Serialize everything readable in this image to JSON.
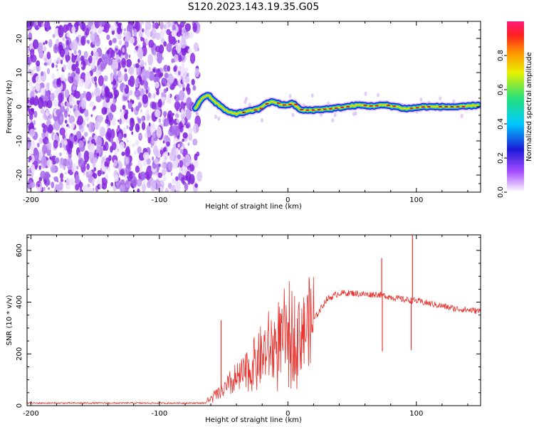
{
  "title": "S120.2023.143.19.35.G05",
  "colors": {
    "snr_line": "#e8332e",
    "scatter": "#8a2be2",
    "ridge_hot": "#e5192a",
    "ridge_warm": "#ffd000",
    "ridge_mid": "#2ee05a",
    "ridge_cool": "#1b1bd6"
  },
  "chart_data": [
    {
      "type": "heatmap",
      "xlabel": "Height of straight line (km)",
      "ylabel": "Frequency (Hz)",
      "xlim": [
        -203,
        150
      ],
      "ylim": [
        -25,
        25
      ],
      "xticks": [
        -200,
        -100,
        0,
        100
      ],
      "yticks": [
        -20,
        -10,
        0,
        10,
        20
      ],
      "noise_region_x": [
        -203,
        -72
      ],
      "ridge": {
        "x": [
          -72,
          -67,
          -62,
          -57,
          -52,
          -47,
          -40,
          -33,
          -27,
          -22,
          -17,
          -11,
          -5,
          0,
          4,
          10,
          18,
          25,
          35,
          45,
          55,
          65,
          75,
          85,
          90,
          95,
          105,
          120,
          135,
          148
        ],
        "freq": [
          -0.5,
          2.5,
          3.5,
          1.5,
          0,
          -1.5,
          -2,
          -1.5,
          -1,
          -0.5,
          1,
          1.5,
          0.5,
          0.6,
          1,
          -1,
          -1,
          -0.8,
          -0.5,
          0,
          0.5,
          0.2,
          0.5,
          0,
          -0.5,
          -0.5,
          0,
          0,
          0,
          0.5
        ]
      },
      "colorbar": {
        "label": "Normalized spectral amplitude",
        "range": [
          0.0,
          1.0
        ],
        "ticks": [
          "0.0",
          "0.2",
          "0.4",
          "0.6",
          "0.8"
        ]
      }
    },
    {
      "type": "line",
      "xlabel": "Height of straight line (km)",
      "ylabel": "SNR (10 * v/v)",
      "xlim": [
        -203,
        150
      ],
      "ylim": [
        0,
        660
      ],
      "xticks": [
        -200,
        -100,
        0,
        100
      ],
      "yticks": [
        0,
        200,
        400,
        600
      ],
      "trend": {
        "x": [
          -203,
          -64,
          -62,
          -50,
          -40,
          -30,
          -20,
          -10,
          0,
          10,
          20,
          30,
          40,
          50,
          60,
          70,
          80,
          90,
          100,
          110,
          120,
          130,
          140,
          150
        ],
        "y": [
          10,
          10,
          20,
          60,
          100,
          140,
          190,
          230,
          260,
          290,
          330,
          410,
          435,
          435,
          430,
          430,
          420,
          410,
          405,
          395,
          385,
          375,
          370,
          365
        ]
      },
      "spikes": [
        {
          "x": -52,
          "y": 330
        },
        {
          "x": 73,
          "y": 570
        },
        {
          "x": 73.5,
          "y": 210
        },
        {
          "x": 97,
          "y": 660
        },
        {
          "x": 96,
          "y": 215
        }
      ]
    }
  ]
}
